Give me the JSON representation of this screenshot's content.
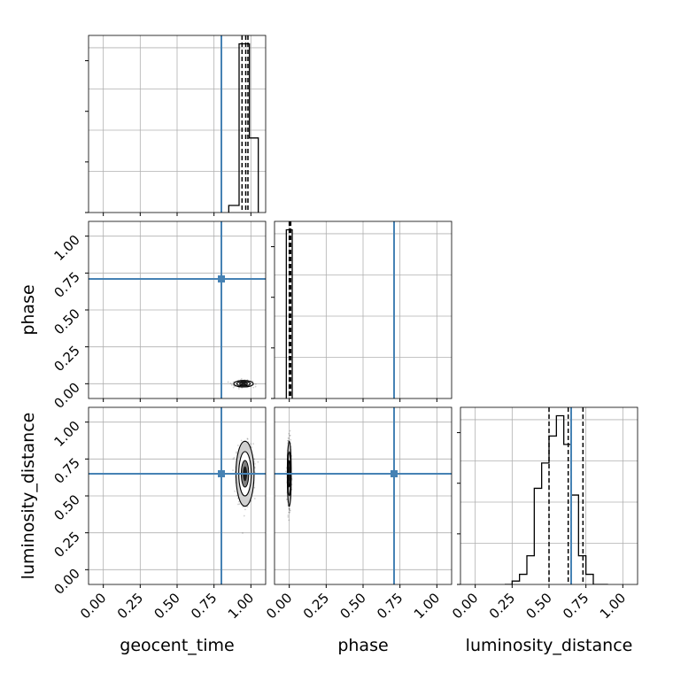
{
  "chart_data": {
    "type": "corner",
    "title": "",
    "parameters": [
      "geocent_time",
      "phase",
      "luminosity_distance"
    ],
    "axis_range": [
      -0.1,
      1.1
    ],
    "tick_labels": [
      "0.00",
      "0.25",
      "0.50",
      "0.75",
      "1.00"
    ],
    "tick_values": [
      0,
      0.25,
      0.5,
      0.75,
      1.0
    ],
    "grid": true,
    "injection": {
      "color": "#4682b4",
      "values": {
        "geocent_time": 0.8,
        "phase": 0.71,
        "luminosity_distance": 0.65
      }
    },
    "histograms": {
      "geocent_time": {
        "bin_edges": [
          0.85,
          0.92,
          0.94,
          0.99,
          1.05
        ],
        "counts": [
          0.04,
          0.95,
          0.95,
          0.42
        ],
        "quantiles": [
          0.94,
          0.965,
          0.98
        ]
      },
      "phase": {
        "bin_edges": [
          -0.02,
          0.0,
          0.02
        ],
        "counts": [
          1.0,
          1.0
        ],
        "quantiles": [
          0.0,
          0.005,
          0.01
        ]
      },
      "luminosity_distance": {
        "bin_edges": [
          0.2,
          0.25,
          0.3,
          0.35,
          0.4,
          0.45,
          0.5,
          0.55,
          0.6,
          0.65,
          0.7,
          0.75,
          0.8,
          0.85,
          0.9
        ],
        "counts": [
          0.0,
          0.02,
          0.06,
          0.17,
          0.57,
          0.72,
          0.88,
          1.0,
          0.83,
          0.53,
          0.17,
          0.06,
          0.0,
          0.0
        ],
        "quantiles": [
          0.5,
          0.63,
          0.73
        ]
      }
    },
    "joint_2d": {
      "phase_vs_geocent_time": {
        "x_center": 0.95,
        "y_center": 0.0,
        "x_sd": 0.03,
        "y_sd": 0.01
      },
      "luminosity_distance_vs_geocent_time": {
        "x_center": 0.96,
        "y_center": 0.65,
        "x_sd": 0.028,
        "y_sd": 0.1
      },
      "luminosity_distance_vs_phase": {
        "x_center": 0.0,
        "y_center": 0.65,
        "x_sd": 0.006,
        "y_sd": 0.1
      }
    }
  }
}
